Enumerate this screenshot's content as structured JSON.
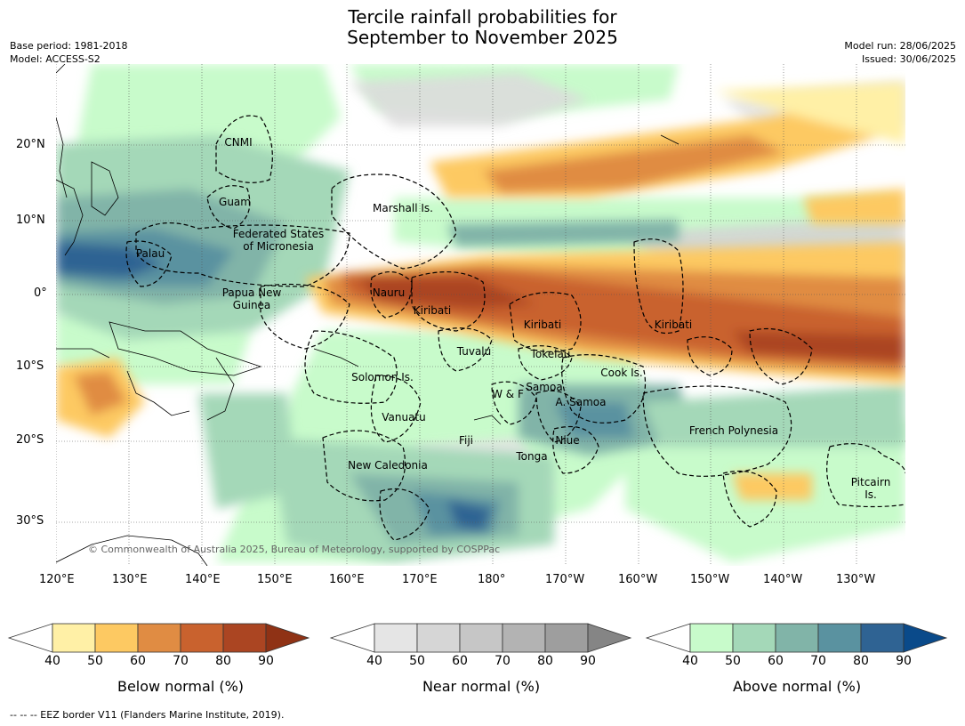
{
  "header": {
    "title_line1": "Tercile rainfall probabilities for",
    "title_line2": "September to November 2025",
    "base_period": "Base period: 1981-2018",
    "model": "Model: ACCESS-S2",
    "model_run": "Model run: 28/06/2025",
    "issued": "Issued: 30/06/2025"
  },
  "map": {
    "copyright": "© Commonwealth of Australia 2025, Bureau of Meteorology, supported by COSPPac",
    "lat_labels": [
      "20°N",
      "10°N",
      "0°",
      "10°S",
      "20°S",
      "30°S"
    ],
    "lon_labels": [
      "120°E",
      "130°E",
      "140°E",
      "150°E",
      "160°E",
      "170°E",
      "180°",
      "170°W",
      "160°W",
      "150°W",
      "140°W",
      "130°W"
    ],
    "regions": [
      "CNMI",
      "Guam",
      "Marshall Is.",
      "Federated States",
      "of Micronesia",
      "Palau",
      "Nauru",
      "Papua New",
      "Guinea",
      "Kiribati",
      "Kiribati",
      "Kiribati",
      "Tuvalu",
      "Tokelau",
      "Solomon Is.",
      "Cook Is.",
      "Samoa",
      "W & F",
      "A. Samoa",
      "Vanuatu",
      "Fiji",
      "Niue",
      "French Polynesia",
      "Tonga",
      "New Caledonia",
      "Pitcairn",
      "Is."
    ]
  },
  "colorbars": [
    {
      "title": "Below normal (%)",
      "ticks": [
        "40",
        "50",
        "60",
        "70",
        "80",
        "90"
      ],
      "colors": [
        "#fff0a6",
        "#fdc962",
        "#e08c43",
        "#c9622e",
        "#ab4522",
        "#8f3215"
      ]
    },
    {
      "title": "Near normal (%)",
      "ticks": [
        "40",
        "50",
        "60",
        "70",
        "80",
        "90"
      ],
      "colors": [
        "#e5e5e5",
        "#d6d6d6",
        "#c6c6c6",
        "#b3b3b3",
        "#9e9e9e",
        "#858585"
      ]
    },
    {
      "title": "Above normal (%)",
      "ticks": [
        "40",
        "50",
        "60",
        "70",
        "80",
        "90"
      ],
      "colors": [
        "#c8fbcb",
        "#a4d8b8",
        "#81b4a8",
        "#5a92a0",
        "#2f6393",
        "#0a4a8a"
      ]
    }
  ],
  "footer": {
    "eez_note": "--  --  -- EEZ border V11 (Flanders Marine Institute, 2019)."
  }
}
